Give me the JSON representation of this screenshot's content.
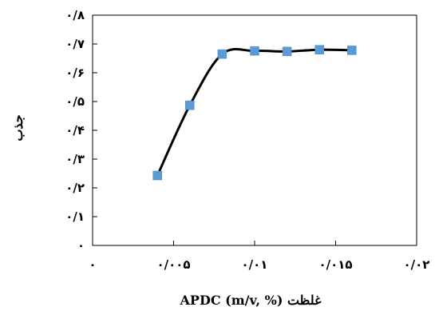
{
  "chart_data": {
    "type": "line",
    "title": "",
    "xlabel": "غلظت APDC (m/v, %)",
    "ylabel": "جذب",
    "xlim": [
      0,
      0.02
    ],
    "ylim": [
      0,
      0.8
    ],
    "x_ticks": [
      0,
      0.005,
      0.01,
      0.015,
      0.02
    ],
    "y_ticks": [
      0,
      0.1,
      0.2,
      0.3,
      0.4,
      0.5,
      0.6,
      0.7,
      0.8
    ],
    "x_tick_labels": [
      "۰",
      "۰/۰۰۵",
      "۰/۰۱",
      "۰/۰۱۵",
      "۰/۰۲"
    ],
    "y_tick_labels": [
      "۰",
      "۰/۱",
      "۰/۲",
      "۰/۳",
      "۰/۴",
      "۰/۵",
      "۰/۶",
      "۰/۷",
      "۰/۸"
    ],
    "grid": false,
    "legend": "none",
    "series": [
      {
        "x": [
          0.004,
          0.006,
          0.008,
          0.01,
          0.012,
          0.014,
          0.016
        ],
        "y": [
          0.243,
          0.487,
          0.665,
          0.676,
          0.674,
          0.68,
          0.678
        ],
        "marker": "square",
        "marker_color": "#5b9bd5",
        "line_color": "#000000"
      }
    ]
  }
}
